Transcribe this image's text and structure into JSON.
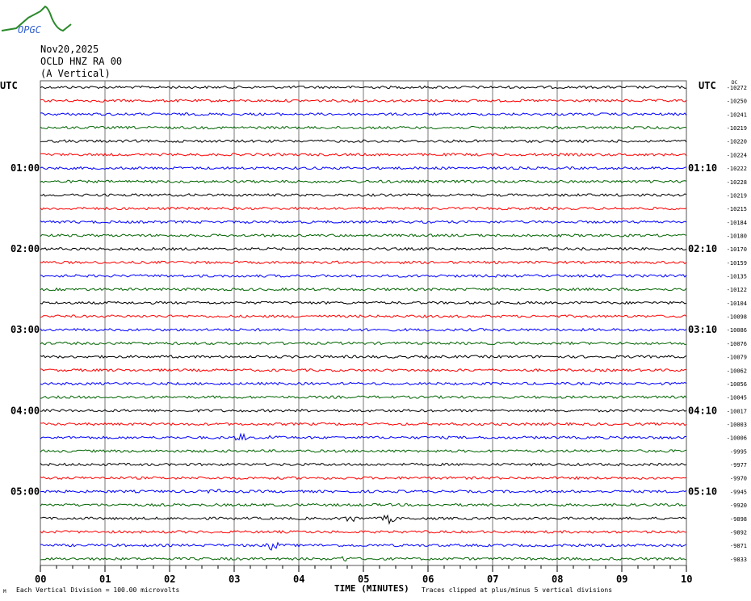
{
  "logo": {
    "text": "OPGC"
  },
  "header": {
    "date": "Nov20,2025",
    "station": "OCLD HNZ RA 00",
    "component": "(A Vertical)"
  },
  "left_axis": {
    "unit": "UTC",
    "hour_labels": [
      "01:00",
      "02:00",
      "03:00",
      "04:00",
      "05:00"
    ]
  },
  "right_axis": {
    "unit": "UTC",
    "dc_label": "DC",
    "hour_labels": [
      "01:10",
      "02:10",
      "03:10",
      "04:10",
      "05:10"
    ]
  },
  "footer": {
    "left_mark": "M",
    "scale": "Each Vertical Division =  100.00 microvolts",
    "xlabel": "TIME (MINUTES)",
    "clip_note": "Traces clipped at plus/minus 5 vertical divisions"
  },
  "chart_data": {
    "type": "line",
    "xlabel": "TIME (MINUTES)",
    "x_ticks": [
      "00",
      "01",
      "02",
      "03",
      "04",
      "05",
      "06",
      "07",
      "08",
      "09",
      "10"
    ],
    "xlim": [
      0,
      10
    ],
    "grid": true,
    "minutes_per_row": 10,
    "row_colors": [
      "#000000",
      "#ff0000",
      "#0000ff",
      "#006400"
    ],
    "dc_offsets": [
      -10272,
      -10250,
      -10241,
      -10219,
      -10220,
      -10224,
      -10222,
      -10228,
      -10219,
      -10215,
      -10184,
      -10180,
      -10170,
      -10159,
      -10135,
      -10122,
      -10104,
      -10098,
      -10086,
      -10076,
      -10079,
      -10062,
      -10056,
      -10045,
      -10017,
      -10003,
      -10006,
      -9995,
      -9977,
      -9970,
      -9945,
      -9920,
      -9898,
      -9892,
      -9871,
      -9833
    ],
    "events": [
      {
        "row": 26,
        "minute": 3.1,
        "amplitude": 3
      },
      {
        "row": 26,
        "minute": 3.6,
        "amplitude": 2
      },
      {
        "row": 32,
        "minute": 4.8,
        "amplitude": 3
      },
      {
        "row": 32,
        "minute": 5.4,
        "amplitude": 4
      },
      {
        "row": 34,
        "minute": 3.6,
        "amplitude": 4
      },
      {
        "row": 30,
        "minute": 2.7,
        "amplitude": 2
      },
      {
        "row": 35,
        "minute": 4.7,
        "amplitude": 2
      }
    ]
  }
}
